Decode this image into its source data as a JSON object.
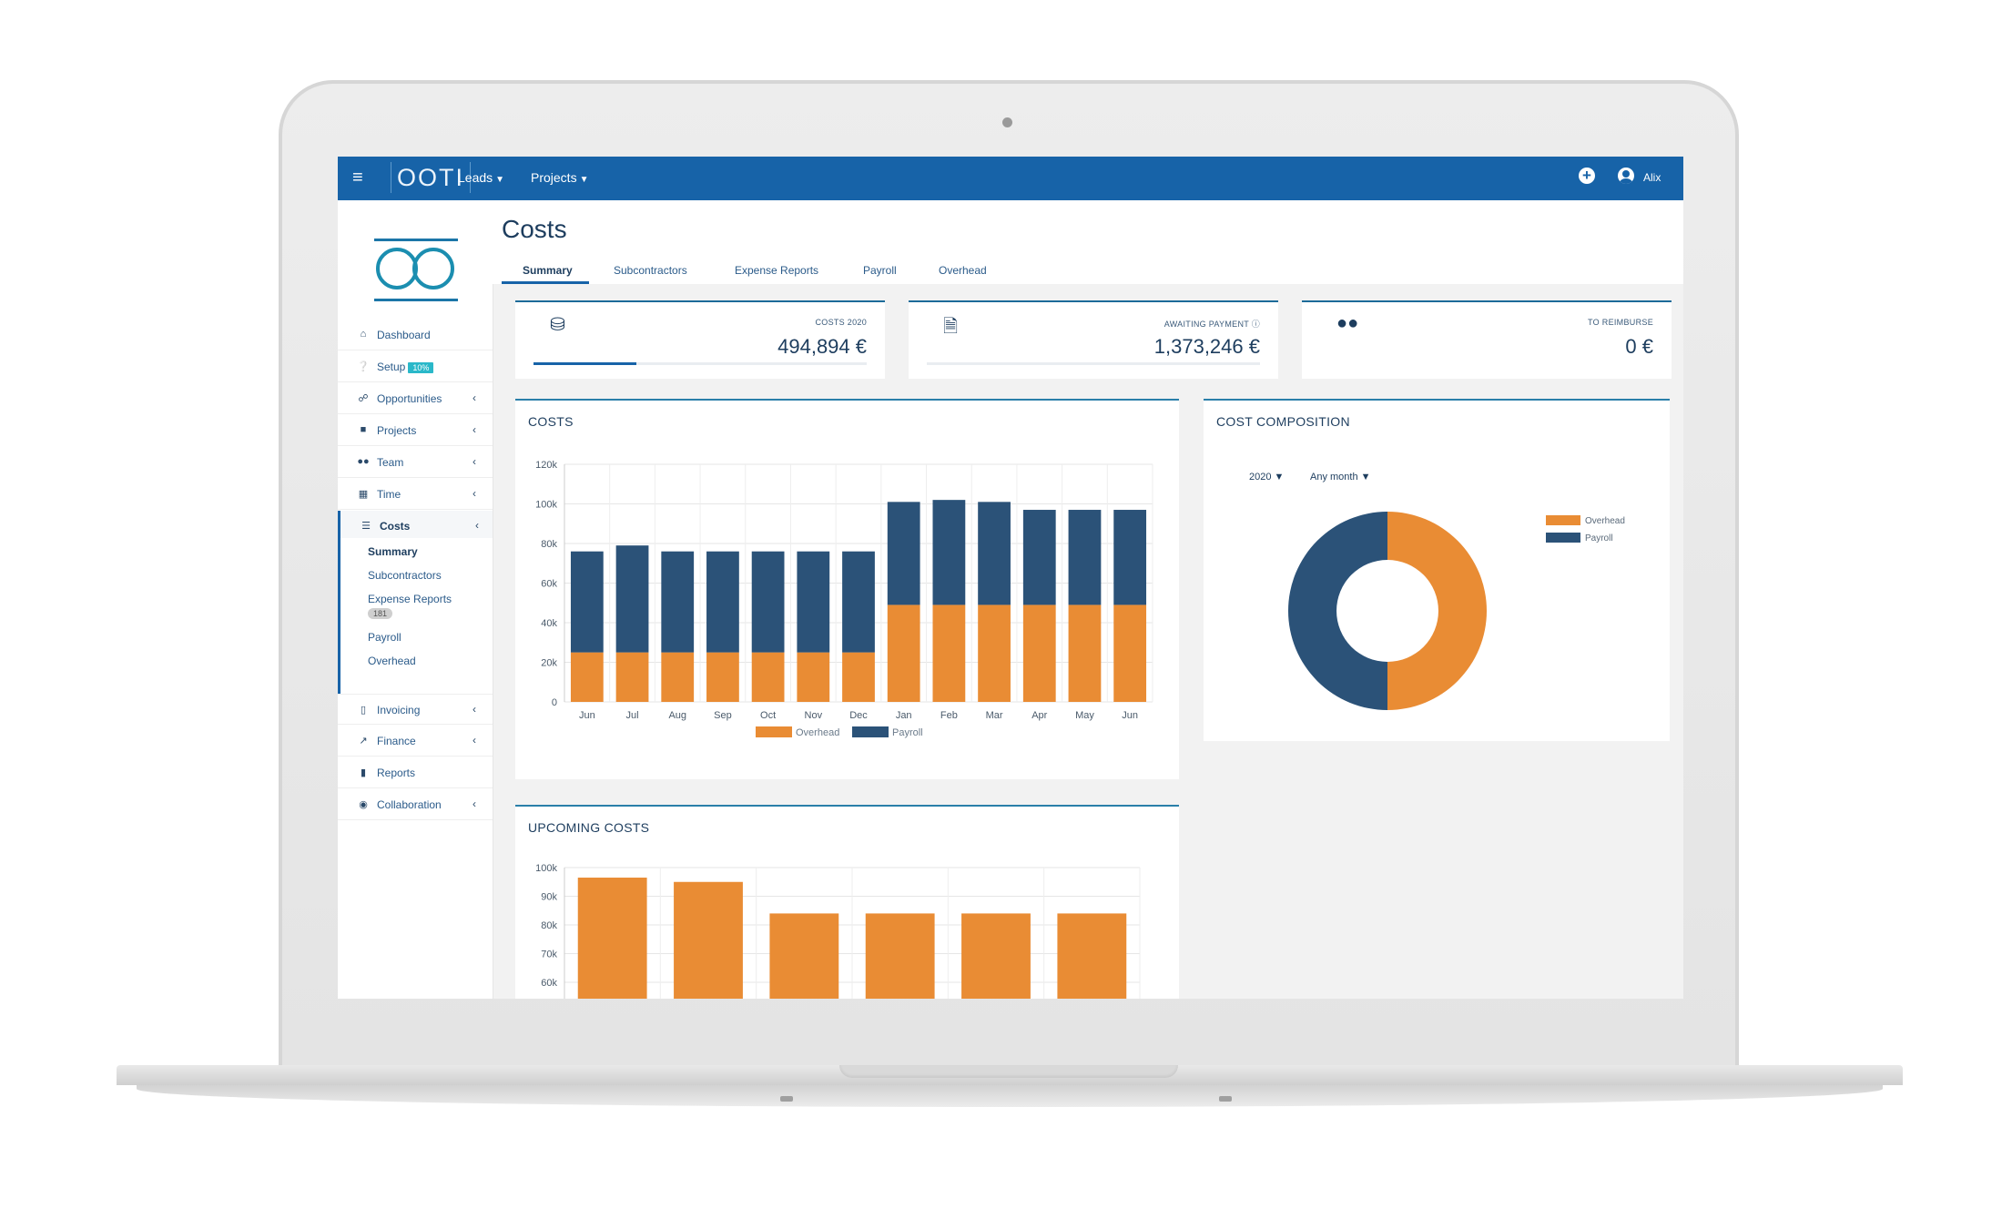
{
  "topbar": {
    "brand": "OOTI",
    "nav": [
      {
        "label": "Leads"
      },
      {
        "label": "Projects"
      }
    ],
    "user_name": "Alix"
  },
  "sidebar": {
    "items": [
      {
        "label": "Dashboard",
        "icon": "home-icon"
      },
      {
        "label": "Setup",
        "badge": "10%",
        "icon": "question-icon"
      },
      {
        "label": "Opportunities",
        "icon": "handshake-icon"
      },
      {
        "label": "Projects",
        "icon": "folder-icon"
      },
      {
        "label": "Team",
        "icon": "users-icon"
      },
      {
        "label": "Time",
        "icon": "calendar-icon"
      },
      {
        "label": "Costs",
        "icon": "coins-icon"
      },
      {
        "label": "Invoicing",
        "icon": "invoice-icon"
      },
      {
        "label": "Finance",
        "icon": "chart-line-icon"
      },
      {
        "label": "Reports",
        "icon": "file-icon"
      },
      {
        "label": "Collaboration",
        "icon": "comments-icon"
      }
    ],
    "costs_sub": [
      {
        "label": "Summary"
      },
      {
        "label": "Subcontractors"
      },
      {
        "label": "Expense Reports",
        "badge": "181"
      },
      {
        "label": "Payroll"
      },
      {
        "label": "Overhead"
      }
    ]
  },
  "page": {
    "title": "Costs",
    "tabs": [
      {
        "label": "Summary"
      },
      {
        "label": "Subcontractors"
      },
      {
        "label": "Expense Reports"
      },
      {
        "label": "Payroll"
      },
      {
        "label": "Overhead"
      }
    ]
  },
  "kpis": [
    {
      "label": "COSTS 2020",
      "value": "494,894 €",
      "icon": "coins-icon",
      "progress": 0.31
    },
    {
      "label": "AWAITING PAYMENT",
      "value": "1,373,246 €",
      "icon": "file-upload-icon"
    },
    {
      "label": "TO REIMBURSE",
      "value": "0 €",
      "icon": "users-icon"
    }
  ],
  "colors": {
    "overhead": "#e98c34",
    "payroll": "#2b5278",
    "accent": "#1763a8"
  },
  "panels": {
    "costs_title": "COSTS",
    "composition_title": "COST COMPOSITION",
    "upcoming_title": "UPCOMING COSTS",
    "year_filter": "2020",
    "month_filter": "Any month"
  },
  "chart_data": [
    {
      "type": "bar",
      "stacked": true,
      "categories": [
        "Jun",
        "Jul",
        "Aug",
        "Sep",
        "Oct",
        "Nov",
        "Dec",
        "Jan",
        "Feb",
        "Mar",
        "Apr",
        "May",
        "Jun"
      ],
      "series": [
        {
          "name": "Overhead",
          "values": [
            25000,
            25000,
            25000,
            25000,
            25000,
            25000,
            25000,
            49000,
            49000,
            49000,
            49000,
            49000,
            49000
          ]
        },
        {
          "name": "Payroll",
          "values": [
            51000,
            54000,
            51000,
            51000,
            51000,
            51000,
            51000,
            52000,
            53000,
            52000,
            48000,
            48000,
            48000
          ]
        }
      ],
      "yticks": [
        "0",
        "20k",
        "40k",
        "60k",
        "80k",
        "100k",
        "120k"
      ],
      "ylim": [
        0,
        120000
      ],
      "legend": "bottom",
      "grid": true
    },
    {
      "type": "pie",
      "donut": true,
      "categories": [
        "Overhead",
        "Payroll"
      ],
      "values": [
        50,
        50
      ],
      "legend": "top-right"
    },
    {
      "type": "bar",
      "values": [
        96500,
        95000,
        84000,
        84000,
        84000,
        84000
      ],
      "yticks": [
        "60k",
        "70k",
        "80k",
        "90k",
        "100k"
      ],
      "ylim": [
        55000,
        100000
      ],
      "grid": true
    }
  ]
}
